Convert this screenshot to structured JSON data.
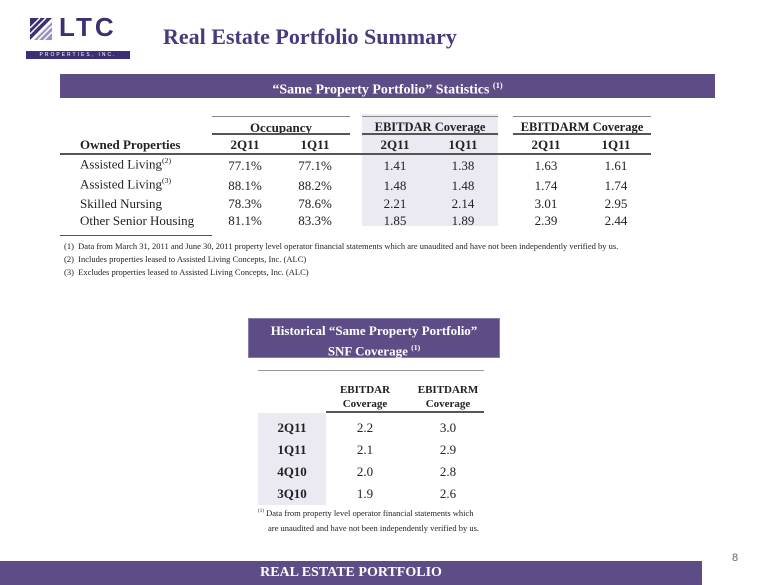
{
  "logo": {
    "word": "LTC",
    "sub": "PROPERTIES, INC."
  },
  "title": "Real Estate Portfolio Summary",
  "stats": {
    "banner": "“Same Property Portfolio” Statistics",
    "banner_note": "(1)",
    "groups": [
      "Occupancy",
      "EBITDAR Coverage",
      "EBITDARM Coverage"
    ],
    "row_header": "Owned Properties",
    "periods": [
      "2Q11",
      "1Q11",
      "2Q11",
      "1Q11",
      "2Q11",
      "1Q11"
    ],
    "rows": [
      {
        "label": "Assisted Living",
        "note": "(2)",
        "values": [
          "77.1%",
          "77.1%",
          "1.41",
          "1.38",
          "1.63",
          "1.61"
        ]
      },
      {
        "label": "Assisted Living",
        "note": "(3)",
        "values": [
          "88.1%",
          "88.2%",
          "1.48",
          "1.48",
          "1.74",
          "1.74"
        ]
      },
      {
        "label": "Skilled Nursing",
        "note": "",
        "values": [
          "78.3%",
          "78.6%",
          "2.21",
          "2.14",
          "3.01",
          "2.95"
        ]
      },
      {
        "label": "Other Senior Housing",
        "note": "",
        "values": [
          "81.1%",
          "83.3%",
          "1.85",
          "1.89",
          "2.39",
          "2.44"
        ]
      }
    ],
    "footnotes": [
      {
        "num": "(1)",
        "text": "Data from March 31, 2011 and June 30, 2011 property level operator financial statements which are unaudited and have not been independently verified by us."
      },
      {
        "num": "(2)",
        "text": "Includes properties leased to Assisted Living Concepts, Inc. (ALC)"
      },
      {
        "num": "(3)",
        "text": "Excludes properties leased to Assisted Living Concepts, Inc. (ALC)"
      }
    ]
  },
  "snf": {
    "banner_line1": "Historical “Same Property Portfolio”",
    "banner_line2": "SNF Coverage",
    "banner_note": "(1)",
    "col1_line1": "EBITDAR",
    "col1_line2": "Coverage",
    "col2_line1": "EBITDARM",
    "col2_line2": "Coverage",
    "rows": [
      {
        "period": "2Q11",
        "ebitdar": "2.2",
        "ebitdarm": "3.0"
      },
      {
        "period": "1Q11",
        "ebitdar": "2.1",
        "ebitdarm": "2.9"
      },
      {
        "period": "4Q10",
        "ebitdar": "2.0",
        "ebitdarm": "2.8"
      },
      {
        "period": "3Q10",
        "ebitdar": "1.9",
        "ebitdarm": "2.6"
      }
    ],
    "footnote_num": "(1)",
    "footnote_line1": "Data from property level operator financial statements which",
    "footnote_line2": "are unaudited and have not been independently verified by us."
  },
  "footer": "REAL ESTATE PORTFOLIO",
  "page_number": "8",
  "colors": {
    "brand": "#4a3a7c",
    "banner": "#5e4c86",
    "shade": "#ebe9f1"
  }
}
